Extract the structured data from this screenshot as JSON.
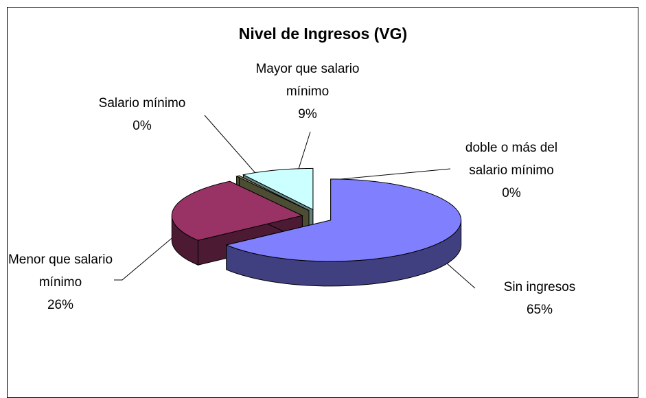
{
  "chart_data": {
    "type": "pie3d",
    "title": "Nivel de Ingresos (VG)",
    "categories": [
      "Sin ingresos",
      "Menor que salario mínimo",
      "Salario mínimo",
      "Mayor que salario mínimo",
      "doble o más del salario mínimo"
    ],
    "values": [
      65,
      26,
      0.4,
      9,
      0
    ],
    "value_labels": [
      "65%",
      "26%",
      "0%",
      "9%",
      "0%"
    ],
    "colors": [
      "#8080ff",
      "#993366",
      "#999966",
      "#ccffff",
      "#ffffff"
    ]
  }
}
